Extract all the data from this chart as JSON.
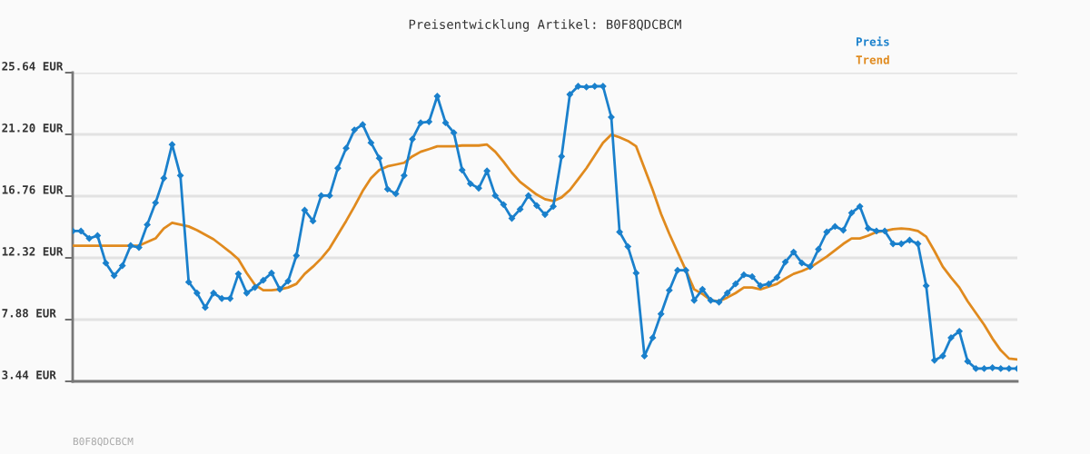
{
  "chart_data": {
    "type": "line",
    "title": "Preisentwicklung Artikel: B0F8QDCBCM",
    "categories": [
      null,
      null,
      null,
      null,
      null,
      null,
      null,
      null,
      null,
      null,
      null,
      null,
      null,
      null,
      null,
      null,
      null,
      null,
      null,
      null,
      null,
      null,
      null,
      null,
      null,
      null,
      null,
      null,
      null,
      null,
      null,
      null,
      null,
      null,
      null,
      null,
      null,
      null,
      null,
      null,
      null,
      null,
      null,
      null,
      null,
      null,
      null,
      null,
      null,
      null,
      null,
      null,
      null,
      null,
      null,
      null,
      null,
      null,
      null,
      null,
      null,
      null,
      null,
      null,
      null,
      null,
      null,
      null,
      null,
      null,
      null,
      null,
      null,
      null,
      null,
      null,
      null,
      null,
      null,
      null,
      null,
      null,
      null,
      null,
      null,
      null,
      null,
      null,
      null,
      null,
      null,
      null,
      null,
      null,
      null,
      null,
      null,
      null,
      null,
      null,
      null,
      null,
      null,
      null,
      null,
      null,
      null,
      null,
      null,
      null,
      null,
      null,
      null,
      null,
      null
    ],
    "series": [
      {
        "name": "Preis",
        "color": "#1a80cc",
        "marker": "diamond",
        "values": [
          14.25,
          14.25,
          13.72,
          13.92,
          11.95,
          11.04,
          11.76,
          13.2,
          13.07,
          14.71,
          16.28,
          18.05,
          20.47,
          18.24,
          10.58,
          9.79,
          8.75,
          9.79,
          9.4,
          9.4,
          11.17,
          9.79,
          10.19,
          10.71,
          11.23,
          10.06,
          10.65,
          12.48,
          15.75,
          14.97,
          16.8,
          16.8,
          18.77,
          20.21,
          21.52,
          21.91,
          20.6,
          19.49,
          17.26,
          16.93,
          18.24,
          20.86,
          22.04,
          22.11,
          23.94,
          22.04,
          21.32,
          18.64,
          17.65,
          17.33,
          18.57,
          16.8,
          16.15,
          15.16,
          15.82,
          16.8,
          16.08,
          15.43,
          16.02,
          19.62,
          24.07,
          24.66,
          24.6,
          24.66,
          24.66,
          22.44,
          14.18,
          13.13,
          11.23,
          5.27,
          6.58,
          8.29,
          9.99,
          11.43,
          11.43,
          9.27,
          10.06,
          9.27,
          9.14,
          9.79,
          10.45,
          11.1,
          10.97,
          10.32,
          10.45,
          10.91,
          12.02,
          12.74,
          11.95,
          11.69,
          12.94,
          14.18,
          14.58,
          14.31,
          15.56,
          16.02,
          14.44,
          14.25,
          14.25,
          13.33,
          13.33,
          13.59,
          13.33,
          10.32,
          4.95,
          5.27,
          6.58,
          7.04,
          4.88,
          4.36,
          4.36,
          4.42,
          4.36,
          4.36,
          4.36
        ]
      },
      {
        "name": "Trend",
        "color": "#e08a1e",
        "marker": "none",
        "values": [
          13.2,
          13.2,
          13.2,
          13.2,
          13.2,
          13.2,
          13.2,
          13.2,
          13.2,
          13.46,
          13.72,
          14.44,
          14.84,
          14.71,
          14.58,
          14.31,
          13.99,
          13.66,
          13.2,
          12.74,
          12.22,
          11.23,
          10.38,
          9.99,
          9.99,
          10.06,
          10.19,
          10.45,
          11.17,
          11.69,
          12.28,
          13.0,
          13.99,
          14.97,
          16.02,
          17.13,
          18.05,
          18.64,
          18.9,
          19.03,
          19.16,
          19.62,
          19.95,
          20.14,
          20.34,
          20.34,
          20.34,
          20.4,
          20.4,
          20.4,
          20.47,
          19.95,
          19.23,
          18.44,
          17.78,
          17.33,
          16.87,
          16.54,
          16.41,
          16.67,
          17.2,
          17.98,
          18.77,
          19.68,
          20.6,
          21.19,
          20.99,
          20.73,
          20.34,
          18.77,
          17.2,
          15.49,
          14.05,
          12.74,
          11.43,
          10.06,
          9.73,
          9.27,
          9.2,
          9.47,
          9.79,
          10.19,
          10.19,
          10.06,
          10.25,
          10.45,
          10.84,
          11.17,
          11.37,
          11.63,
          12.02,
          12.41,
          12.87,
          13.33,
          13.72,
          13.72,
          13.92,
          14.18,
          14.25,
          14.38,
          14.44,
          14.38,
          14.25,
          13.85,
          12.81,
          11.69,
          10.91,
          10.19,
          9.2,
          8.35,
          7.5,
          6.52,
          5.67,
          5.08,
          5.01
        ]
      }
    ],
    "ylim": [
      3.44,
      25.64
    ],
    "yticks": [
      {
        "value": 3.44,
        "label": "3.44 EUR"
      },
      {
        "value": 7.88,
        "label": "7.88 EUR"
      },
      {
        "value": 12.32,
        "label": "12.32 EUR"
      },
      {
        "value": 16.76,
        "label": "16.76 EUR"
      },
      {
        "value": 21.2,
        "label": "21.20 EUR"
      },
      {
        "value": 25.64,
        "label": "25.64 EUR"
      }
    ],
    "grid": "y",
    "legend": "top right",
    "line_style": "solid",
    "annotations": [
      "B0F8QDCBCM"
    ]
  }
}
